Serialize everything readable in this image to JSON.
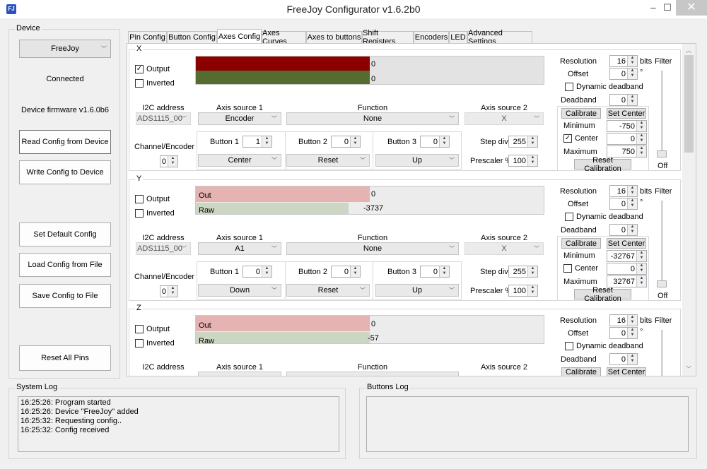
{
  "window": {
    "title": "FreeJoy Configurator v1.6.2b0",
    "icon_label": "FJ",
    "minimize": "‒",
    "maximize": "☐",
    "close": "✕"
  },
  "device": {
    "group_label": "Device",
    "selected_device": "FreeJoy",
    "status": "Connected",
    "firmware": "Device firmware v1.6.0b6",
    "read_config": "Read Config from Device",
    "write_config": "Write Config to Device",
    "set_default": "Set Default Config",
    "load_config": "Load Config from File",
    "save_config": "Save Config to File",
    "reset_pins": "Reset All Pins"
  },
  "tabs": [
    {
      "label": "Pin Config"
    },
    {
      "label": "Button Config"
    },
    {
      "label": "Axes Config"
    },
    {
      "label": "Axes Curves"
    },
    {
      "label": "Axes to buttons"
    },
    {
      "label": "Shift Registers"
    },
    {
      "label": "Encoders"
    },
    {
      "label": "LED"
    },
    {
      "label": "Advanced Settings"
    }
  ],
  "labels": {
    "output": "Output",
    "inverted": "Inverted",
    "i2c_address": "I2C address",
    "axis_source_1": "Axis source 1",
    "function": "Function",
    "axis_source_2": "Axis source 2",
    "channel_encoder": "Channel/Encoder",
    "button1": "Button 1",
    "button2": "Button 2",
    "button3": "Button 3",
    "step_div": "Step div",
    "prescaler": "Prescaler %",
    "resolution": "Resolution",
    "bits": "bits",
    "filter": "Filter",
    "offset": "Offset",
    "degree": "°",
    "dynamic_deadband": "Dynamic deadband",
    "deadband": "Deadband",
    "calibrate": "Calibrate",
    "set_center": "Set Center",
    "minimum": "Minimum",
    "center": "Center",
    "maximum": "Maximum",
    "reset_calibration": "Reset Calibration",
    "filter_value": "Off",
    "out_bar": "Out",
    "raw_bar": "Raw"
  },
  "axes": [
    {
      "name": "X",
      "output_checked": "✓",
      "out_value": "0",
      "raw_value": "0",
      "out_label": "",
      "raw_label": "",
      "i2c": "ADS1115_00",
      "source1": "Encoder",
      "function": "None",
      "source2": "X",
      "channel": "0",
      "button1_value": "1",
      "button2_value": "0",
      "button3_value": "0",
      "button1_mode": "Center",
      "button2_mode": "Reset",
      "button3_mode": "Up",
      "step_div": "255",
      "prescaler": "100",
      "resolution": "16",
      "offset": "0",
      "deadband": "0",
      "minimum": "-750",
      "center_checked": "✓",
      "center_value": "0",
      "maximum": "750"
    },
    {
      "name": "Y",
      "output_checked": "",
      "out_value": "0",
      "raw_value": "-3737",
      "i2c": "ADS1115_00",
      "source1": "A1",
      "function": "None",
      "source2": "X",
      "channel": "0",
      "button1_value": "0",
      "button2_value": "0",
      "button3_value": "0",
      "button1_mode": "Down",
      "button2_mode": "Reset",
      "button3_mode": "Up",
      "step_div": "255",
      "prescaler": "100",
      "resolution": "16",
      "offset": "0",
      "deadband": "0",
      "minimum": "-32767",
      "center_checked": "",
      "center_value": "0",
      "maximum": "32767"
    },
    {
      "name": "Z",
      "output_checked": "",
      "out_value": "0",
      "raw_value": "-57",
      "i2c": "",
      "source1": "",
      "function": "",
      "source2": "",
      "resolution": "16",
      "offset": "0",
      "deadband": "0"
    }
  ],
  "system_log": {
    "label": "System Log",
    "lines": [
      "16:25:26: Program started",
      "16:25:26: Device \"FreeJoy\" added",
      "16:25:32: Requesting config..",
      "16:25:32: Config received"
    ]
  },
  "buttons_log": {
    "label": "Buttons Log"
  },
  "colors": {
    "x_out": "#8b0000",
    "x_raw": "#556b2f",
    "y_out": "#e6b3b3",
    "y_raw": "#ccd7c3"
  },
  "levels": {
    "x_out_fill_fraction": 0.5,
    "x_raw_fill_fraction": 0.5,
    "y_out_fill_fraction": 0.5,
    "y_raw_fill_fraction": 0.44,
    "z_out_fill_fraction": 0.5,
    "z_raw_fill_fraction": 0.5
  }
}
